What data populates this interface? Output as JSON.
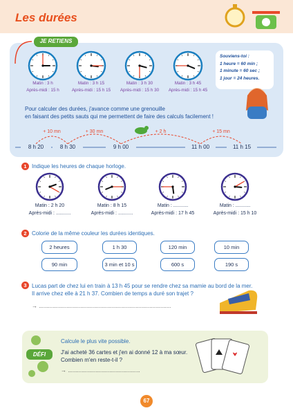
{
  "header": {
    "title": "Les durées"
  },
  "lesson": {
    "tag": "JE RETIENS",
    "clocks": [
      {
        "morning": "Matin : 3 h",
        "afternoon": "Après-midi : 15 h"
      },
      {
        "morning": "Matin : 3 h 15",
        "afternoon": "Après-midi : 15 h 15"
      },
      {
        "morning": "Matin : 3 h 30",
        "afternoon": "Après-midi : 15 h 30"
      },
      {
        "morning": "Matin : 3 h 45",
        "afternoon": "Après-midi : 15 h 45"
      }
    ],
    "reminder": {
      "title": "Souviens-toi :",
      "lines": [
        "1 heure = 60 min ;",
        "1 minute = 60 sec ;",
        "1 jour = 24 heures."
      ]
    },
    "text": [
      "Pour calculer des durées, j'avance comme une grenouille",
      "en faisant des petits sauts qui me permettent de faire des calculs facilement !"
    ],
    "jumps": [
      "+ 10 mn",
      "+ 30 mn",
      "+ 2 h",
      "+ 15 mn"
    ],
    "times": [
      "8 h 20",
      "8 h 30",
      "9 h 00",
      "11 h 00",
      "11 h 15"
    ]
  },
  "exercises": [
    {
      "number": "1",
      "instruction": "Indique les heures de chaque horloge.",
      "clocks": [
        {
          "morning": "Matin : 2 h 20",
          "afternoon": "Après-midi : ..........."
        },
        {
          "morning": "Matin : 8 h 15",
          "afternoon": "Après-midi : ..........."
        },
        {
          "morning": "Matin : ...........",
          "afternoon": "Après-midi : 17 h 45"
        },
        {
          "morning": "Matin : ...........",
          "afternoon": "Après-midi : 15 h 10"
        }
      ]
    },
    {
      "number": "2",
      "instruction": "Colorie de la même couleur les durées identiques.",
      "boxes": [
        "2 heures",
        "1 h 30",
        "120 min",
        "10 min",
        "90 min",
        "3 min et 10 s",
        "600 s",
        "190 s"
      ]
    },
    {
      "number": "3",
      "lines": [
        "Lucas part de chez lui en train à 13 h 45 pour se rendre chez sa mamie au bord de la mer.",
        "Il arrive chez elle à 21 h 37. Combien de temps a duré son trajet ?"
      ],
      "answer": "→ ......................................................................................"
    }
  ],
  "challenge": {
    "tag": "DÉFI",
    "instruction": "Calcule le plus vite possible.",
    "lines": [
      "J'ai acheté 36 cartes et j'en ai donné 12 à ma sœur.",
      "Combien m'en reste-t-il ?"
    ],
    "answer": "→ ..............................................."
  },
  "footer": {
    "page": "67"
  }
}
